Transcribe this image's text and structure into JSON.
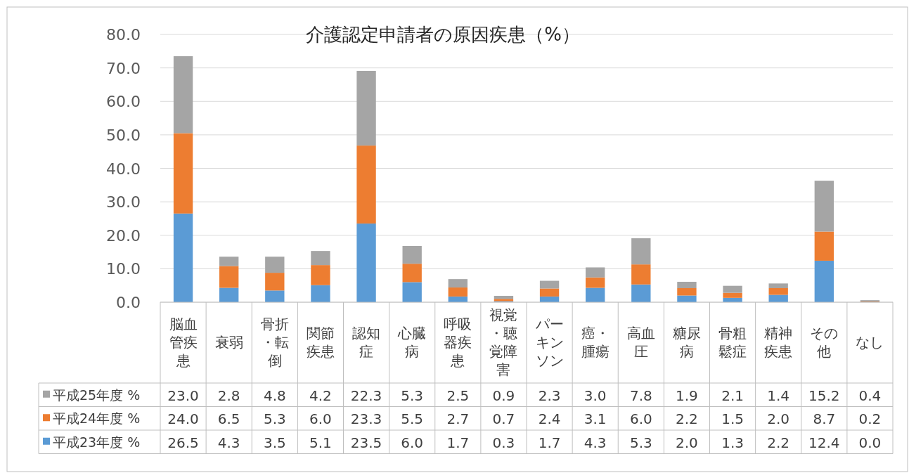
{
  "chart_data": {
    "type": "bar",
    "stacked": true,
    "title": "介護認定申請者の原因疾患（%）",
    "categories": [
      "脳血管疾患",
      "衰弱",
      "骨折・転倒",
      "関節疾患",
      "認知症",
      "心臓病",
      "呼吸器疾患",
      "視覚・聴覚障害",
      "パーキンソン",
      "癌・腫瘍",
      "高血圧",
      "糖尿病",
      "骨粗鬆症",
      "精神疾患",
      "その他",
      "なし"
    ],
    "series": [
      {
        "name": "平成23年度 %",
        "color": "#5b9bd5",
        "values": [
          26.5,
          4.3,
          3.5,
          5.1,
          23.5,
          6.0,
          1.7,
          0.3,
          1.7,
          4.3,
          5.3,
          2.0,
          1.3,
          2.2,
          12.4,
          0.0
        ],
        "value_labels": [
          "26.5",
          "4.3",
          "3.5",
          "5.1",
          "23.5",
          "6.0",
          "1.7",
          "0.3",
          "1.7",
          "4.3",
          "5.3",
          "2.0",
          "1.3",
          "2.2",
          "12.4",
          "0.0"
        ]
      },
      {
        "name": "平成24年度 %",
        "color": "#ed7d31",
        "values": [
          24.0,
          6.5,
          5.3,
          6.0,
          23.3,
          5.5,
          2.7,
          0.7,
          2.4,
          3.1,
          6.0,
          2.2,
          1.5,
          2.0,
          8.7,
          0.2
        ],
        "value_labels": [
          "24.0",
          "6.5",
          "5.3",
          "6.0",
          "23.3",
          "5.5",
          "2.7",
          "0.7",
          "2.4",
          "3.1",
          "6.0",
          "2.2",
          "1.5",
          "2.0",
          "8.7",
          "0.2"
        ]
      },
      {
        "name": "平成25年度 %",
        "color": "#a5a5a5",
        "values": [
          23.0,
          2.8,
          4.8,
          4.2,
          22.3,
          5.3,
          2.5,
          0.9,
          2.3,
          3.0,
          7.8,
          1.9,
          2.1,
          1.4,
          15.2,
          0.4
        ],
        "value_labels": [
          "23.0",
          "2.8",
          "4.8",
          "4.2",
          "22.3",
          "5.3",
          "2.5",
          "0.9",
          "2.3",
          "3.0",
          "7.8",
          "1.9",
          "2.1",
          "1.4",
          "15.2",
          "0.4"
        ]
      }
    ],
    "ylim": [
      0,
      80
    ],
    "yticks": [
      {
        "value": 0,
        "label": "0.0"
      },
      {
        "value": 10,
        "label": "10.0"
      },
      {
        "value": 20,
        "label": "20.0"
      },
      {
        "value": 30,
        "label": "30.0"
      },
      {
        "value": 40,
        "label": "40.0"
      },
      {
        "value": 50,
        "label": "50.0"
      },
      {
        "value": 60,
        "label": "60.0"
      },
      {
        "value": 70,
        "label": "70.0"
      },
      {
        "value": 80,
        "label": "80.0"
      }
    ],
    "grid": "y",
    "legend": "bottom"
  }
}
